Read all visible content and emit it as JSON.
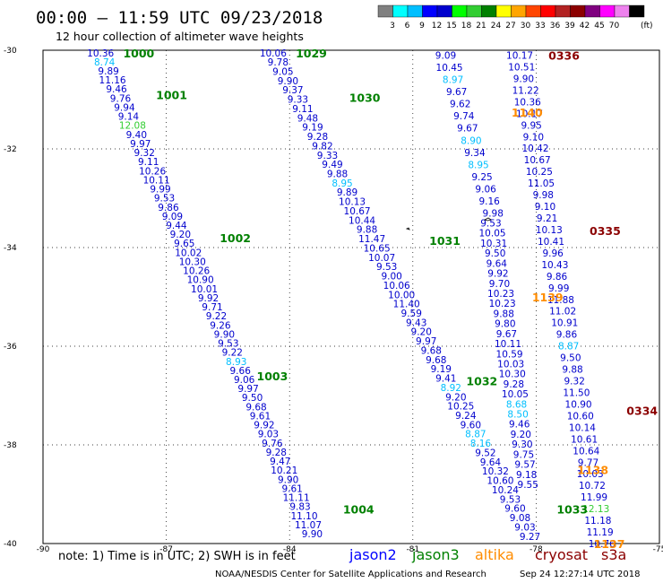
{
  "header": {
    "title": "00:00 – 11:59 UTC 09/23/2018",
    "subtitle": "12 hour collection of altimeter wave heights"
  },
  "scale": {
    "colors": [
      "#808080",
      "#00ffff",
      "#00bfff",
      "#0000ff",
      "#0000cd",
      "#00ff00",
      "#32cd32",
      "#008000",
      "#ffff00",
      "#ffa500",
      "#ff4500",
      "#ff0000",
      "#b22222",
      "#8b0000",
      "#800080",
      "#ff00ff",
      "#ee82ee",
      "#000000"
    ],
    "labels": [
      "3",
      "6",
      "9",
      "12",
      "15",
      "18",
      "21",
      "24",
      "27",
      "30",
      "33",
      "36",
      "39",
      "42",
      "45",
      "70"
    ],
    "unit": "(ft)"
  },
  "axes": {
    "lat_labels": [
      "-30",
      "-32",
      "-34",
      "-36",
      "-38",
      "-40"
    ],
    "lon_labels": [
      "-90",
      "-87",
      "-84",
      "-81",
      "-78",
      "-75"
    ]
  },
  "footer": {
    "note": "note:  1) Time is in UTC;  2) SWH is in feet",
    "credit": "NOAA/NESDIS Center for Satellite Applications and Research",
    "timestamp": "Sep 24 12:27:14 UTC 2018"
  },
  "legend": [
    {
      "name": "jason2",
      "color": "#0000ff"
    },
    {
      "name": "jason3",
      "color": "#008000"
    },
    {
      "name": "altika",
      "color": "#ff8c00"
    },
    {
      "name": "cryosat",
      "color": "#8b0000"
    },
    {
      "name": "s3a",
      "color": "#8b0000"
    }
  ],
  "chart_data": {
    "type": "scatter",
    "xlim": [
      -90,
      -75
    ],
    "ylim": [
      -40,
      -30
    ],
    "xlabel": "",
    "ylabel": "",
    "tracks": [
      {
        "satellite": "jason3",
        "color": "#008000",
        "passes": [
          {
            "label": "1000",
            "lon": -88.05,
            "lat": -30.05
          },
          {
            "label": "1001",
            "lon": -87.25,
            "lat": -30.9
          },
          {
            "label": "1002",
            "lon": -85.7,
            "lat": -33.8
          },
          {
            "label": "1003",
            "lon": -84.8,
            "lat": -36.6
          },
          {
            "label": "1004",
            "lon": -82.7,
            "lat": -39.3
          },
          {
            "label": "1029",
            "lon": -83.85,
            "lat": -30.05
          },
          {
            "label": "1030",
            "lon": -82.55,
            "lat": -30.95
          },
          {
            "label": "1031",
            "lon": -80.6,
            "lat": -33.85
          },
          {
            "label": "1032",
            "lon": -79.7,
            "lat": -36.7
          },
          {
            "label": "1033",
            "lon": -77.5,
            "lat": -39.3
          }
        ],
        "segments": [
          {
            "start": [
              -88.6,
              -30.05
            ],
            "end": [
              -83.45,
              -39.8
            ],
            "values": [
              "10.36",
              "8.74",
              "9.89",
              "11.16",
              "9.46",
              "9.76",
              "9.94",
              "9.14",
              "12.08",
              "9.40",
              "9.97",
              "9.32",
              "9.11",
              "10.26",
              "10.11",
              "9.99",
              "9.53",
              "9.86",
              "9.09",
              "9.44",
              "9.20",
              "9.65",
              "10.02",
              "10.30",
              "10.26",
              "10.90",
              "10.01",
              "9.92",
              "9.71",
              "9.22",
              "9.26",
              "9.90",
              "9.53",
              "9.22",
              "8.93",
              "9.66",
              "9.06",
              "9.97",
              "9.50",
              "9.68",
              "9.61",
              "9.92",
              "9.03",
              "9.76",
              "9.28",
              "9.47",
              "10.21",
              "9.90",
              "9.61",
              "11.11",
              "9.83",
              "11.10",
              "11.07",
              "9.90"
            ]
          },
          {
            "start": [
              -84.4,
              -30.05
            ],
            "end": [
              -78.15,
              -39.85
            ],
            "values": [
              "10.06",
              "9.78",
              "9.05",
              "9.90",
              "9.37",
              "9.33",
              "9.11",
              "9.48",
              "9.19",
              "9.28",
              "9.82",
              "9.33",
              "9.49",
              "9.88",
              "8.95",
              "9.89",
              "10.13",
              "10.67",
              "10.44",
              "9.88",
              "11.47",
              "10.65",
              "10.07",
              "9.53",
              "9.00",
              "10.06",
              "10.00",
              "11.40",
              "9.59",
              "9.43",
              "9.20",
              "9.97",
              "9.68",
              "9.68",
              "9.19",
              "9.41",
              "8.92",
              "9.20",
              "10.25",
              "9.24",
              "9.60",
              "8.87",
              "8.16",
              "9.52",
              "9.64",
              "10.32",
              "10.60",
              "10.24",
              "9.53",
              "9.60",
              "9.08",
              "9.03",
              "9.27"
            ]
          }
        ]
      },
      {
        "satellite": "altika",
        "color": "#ff8c00",
        "passes": [
          {
            "label": "1140",
            "lon": -78.6,
            "lat": -31.25
          },
          {
            "label": "1139",
            "lon": -78.1,
            "lat": -35.0
          },
          {
            "label": "1138",
            "lon": -77.0,
            "lat": -38.5
          },
          {
            "label": "1137",
            "lon": -76.6,
            "lat": -40.0
          }
        ],
        "segments": [
          {
            "start": [
              -80.2,
              -30.1
            ],
            "end": [
              -79.05,
              -33.3
            ],
            "values": [
              "9.09",
              "10.45",
              "8.97",
              "9.67",
              "9.62",
              "9.74",
              "9.67",
              "8.90",
              "9.34",
              "8.95",
              "9.25",
              "9.06",
              "9.16",
              "9.98"
            ]
          },
          {
            "start": [
              -79.1,
              -33.5
            ],
            "end": [
              -78.2,
              -38.8
            ],
            "values": [
              "9.53",
              "10.05",
              "10.31",
              "9.50",
              "9.64",
              "9.92",
              "9.70",
              "10.23",
              "10.23",
              "9.88",
              "9.80",
              "9.67",
              "10.11",
              "10.59",
              "10.03",
              "10.30",
              "9.28",
              "10.05",
              "8.68",
              "8.50",
              "9.46",
              "9.20",
              "9.30",
              "9.75",
              "9.57",
              "9.18",
              "9.55"
            ]
          }
        ]
      },
      {
        "satellite": "cryosat",
        "color": "#8b0000",
        "passes": [
          {
            "label": "0336",
            "lon": -77.7,
            "lat": -30.1
          },
          {
            "label": "0335",
            "lon": -76.7,
            "lat": -33.65
          },
          {
            "label": "0334",
            "lon": -75.8,
            "lat": -37.3
          }
        ],
        "segments": [
          {
            "start": [
              -78.4,
              -30.1
            ],
            "end": [
              -76.4,
              -40.0
            ],
            "values": [
              "10.17",
              "10.51",
              "9.90",
              "11.22",
              "10.36",
              "10.17",
              "9.95",
              "9.10",
              "10.42",
              "10.67",
              "10.25",
              "11.05",
              "9.98",
              "9.10",
              "9.21",
              "10.13",
              "10.41",
              "9.96",
              "10.43",
              "9.86",
              "9.99",
              "11.88",
              "11.02",
              "10.91",
              "9.86",
              "8.87",
              "9.50",
              "9.88",
              "9.32",
              "11.50",
              "10.90",
              "10.60",
              "10.14",
              "10.61",
              "10.64",
              "9.77",
              "10.03",
              "10.72",
              "11.99",
              "12.13",
              "11.18",
              "11.19",
              "10.76"
            ]
          }
        ]
      }
    ]
  }
}
